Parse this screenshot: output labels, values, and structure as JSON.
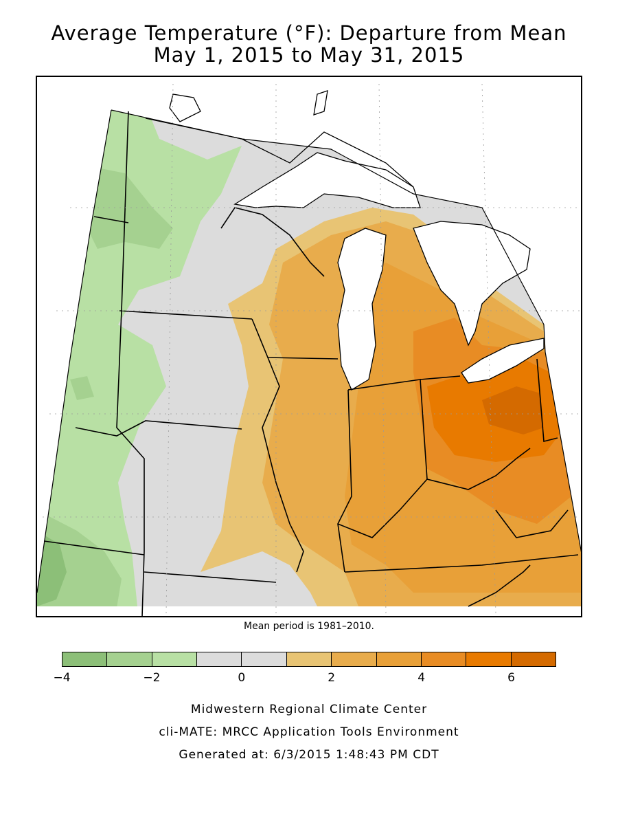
{
  "title": {
    "line1": "Average Temperature (°F): Departure from Mean",
    "line2": "May 1, 2015 to May 31, 2015"
  },
  "map": {
    "region": "Midwest United States",
    "colors": {
      "land_neutral": "#dcdcdc",
      "water": "#ffffff",
      "boundary": "#000000"
    }
  },
  "note": "Mean period is 1981–2010.",
  "legend": {
    "min": -4,
    "max": 7,
    "bins": [
      {
        "from": -4,
        "to": -3,
        "color": "#8cbf78"
      },
      {
        "from": -3,
        "to": -2,
        "color": "#a5d190"
      },
      {
        "from": -2,
        "to": -1,
        "color": "#b8e0a4"
      },
      {
        "from": -1,
        "to": 0,
        "color": "#dcdcdc"
      },
      {
        "from": 0,
        "to": 1,
        "color": "#dcdcdc"
      },
      {
        "from": 1,
        "to": 2,
        "color": "#e8c474"
      },
      {
        "from": 2,
        "to": 3,
        "color": "#e8ac4c"
      },
      {
        "from": 3,
        "to": 4,
        "color": "#e8a038"
      },
      {
        "from": 4,
        "to": 5,
        "color": "#e88c24"
      },
      {
        "from": 5,
        "to": 6,
        "color": "#e87a00"
      },
      {
        "from": 6,
        "to": 7,
        "color": "#d46a00"
      }
    ],
    "ticks": [
      {
        "value": -4,
        "label": "−4"
      },
      {
        "value": -2,
        "label": "−2"
      },
      {
        "value": 0,
        "label": "0"
      },
      {
        "value": 2,
        "label": "2"
      },
      {
        "value": 4,
        "label": "4"
      },
      {
        "value": 6,
        "label": "6"
      }
    ]
  },
  "credits": {
    "line1": "Midwestern Regional Climate Center",
    "line2": "cli-MATE: MRCC Application Tools Environment",
    "line3": "Generated at: 6/3/2015 1:48:43 PM CDT"
  }
}
